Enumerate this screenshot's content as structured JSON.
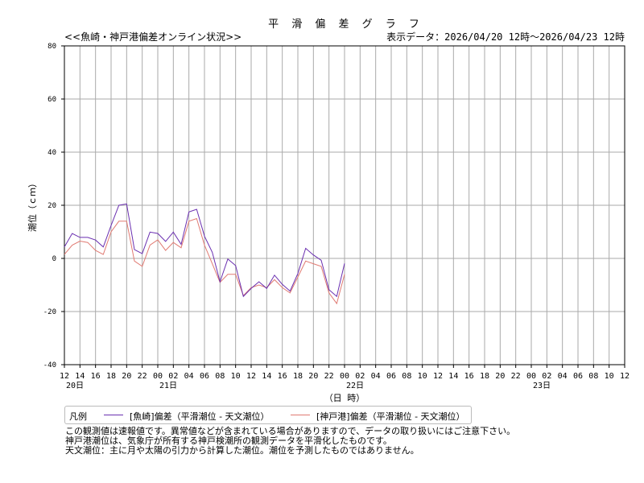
{
  "header": {
    "title": "平 滑 偏 差 グ ラ フ",
    "subtitle": "<<魚崎・神戸港偏差オンライン状況>>",
    "range": "表示データ：2026/04/20 12時～2026/04/23 12時"
  },
  "legend": {
    "label": "凡例",
    "series1": "[魚崎]偏差（平滑潮位 - 天文潮位）",
    "series2": "[神戸港]偏差（平滑潮位 - 天文潮位）"
  },
  "notes": [
    "この観測値は速報値です。異常値などが含まれている場合がありますので、データの取り扱いにはご注意下さい。",
    "神戸港潮位は、気象庁が所有する神戸検潮所の観測データを平滑化したものです。",
    "天文潮位：主に月や太陽の引力から計算した潮位。潮位を予測したものではありません。"
  ],
  "chart_data": {
    "type": "line",
    "ylabel": "潮位（ｃｍ）",
    "xlabel": "（日 時）",
    "ylim": [
      -40,
      80
    ],
    "yticks": [
      "-40",
      "-20",
      "0",
      "20",
      "40",
      "60",
      "80"
    ],
    "xlim_hours": [
      0,
      72
    ],
    "xtick_labels": [
      "12",
      "14",
      "16",
      "18",
      "20",
      "22",
      "00",
      "02",
      "04",
      "06",
      "08",
      "10",
      "12",
      "14",
      "16",
      "18",
      "20",
      "22",
      "00",
      "02",
      "04",
      "06",
      "08",
      "10",
      "12",
      "14",
      "16",
      "18",
      "20",
      "22",
      "00",
      "02",
      "04",
      "06",
      "08",
      "10",
      "12"
    ],
    "day_labels": [
      {
        "hour": 0,
        "label": "20日"
      },
      {
        "hour": 12,
        "label": "21日"
      },
      {
        "hour": 36,
        "label": "22日"
      },
      {
        "hour": 60,
        "label": "23日"
      }
    ],
    "grid": true,
    "series": [
      {
        "name": "[魚崎]偏差（平滑潮位 - 天文潮位）",
        "color": "#6a2fb0",
        "hours_start": 0,
        "step_hours": 1,
        "values": [
          4.3,
          9.4,
          7.9,
          7.9,
          6.9,
          4.3,
          12.4,
          20,
          20.5,
          3.3,
          1.8,
          9.9,
          9.4,
          6.4,
          9.9,
          5.3,
          17.5,
          18.5,
          8.4,
          2.3,
          -8.8,
          -0.2,
          -2.7,
          -14.3,
          -11.3,
          -8.8,
          -11.3,
          -6.3,
          -9.8,
          -12.3,
          -5.7,
          3.8,
          1.3,
          -0.7,
          -11.8,
          -14.3,
          -1.9
        ]
      },
      {
        "name": "[神戸港]偏差（平滑潮位 - 天文潮位）",
        "color": "#e07a72",
        "hours_start": 0,
        "step_hours": 1,
        "values": [
          1.5,
          5,
          6.5,
          6,
          3,
          1.5,
          10,
          14,
          14,
          -1,
          -3,
          5,
          7,
          3,
          6,
          4,
          14,
          15,
          5,
          -2,
          -9,
          -6,
          -6,
          -14,
          -11,
          -10,
          -11,
          -8,
          -11,
          -13,
          -7,
          -1,
          -2,
          -3,
          -13,
          -17,
          -6
        ]
      }
    ]
  }
}
